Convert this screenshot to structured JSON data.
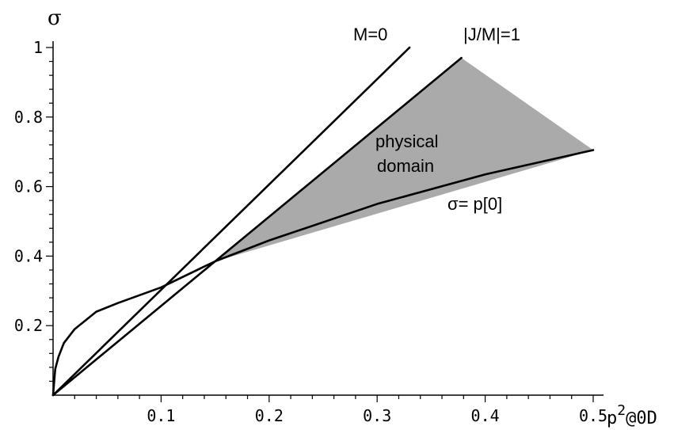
{
  "chart_data": {
    "type": "line",
    "x_axis": {
      "label_base": "p",
      "label_sup": "2",
      "label_tail": "@0D",
      "range": [
        0,
        0.5
      ],
      "tick_labels": [
        "0.1",
        "0.2",
        "0.3",
        "0.4",
        "0.5"
      ],
      "tick_values": [
        0.1,
        0.2,
        0.3,
        0.4,
        0.5
      ]
    },
    "y_axis": {
      "label": "σ",
      "range": [
        0,
        1
      ],
      "tick_labels": [
        "0.2",
        "0.4",
        "0.6",
        "0.8",
        "1"
      ],
      "tick_values": [
        0.2,
        0.4,
        0.6,
        0.8,
        1.0
      ]
    },
    "series": [
      {
        "name": "M=0",
        "x": [
          0,
          0.33
        ],
        "y": [
          0,
          1.0
        ]
      },
      {
        "name": "|J/M|=1",
        "x": [
          0,
          0.378
        ],
        "y": [
          0,
          0.97
        ]
      },
      {
        "name": "σ= p[0]",
        "x": [
          0,
          0.002,
          0.005,
          0.01,
          0.02,
          0.04,
          0.06,
          0.1,
          0.15,
          0.2,
          0.3,
          0.4,
          0.5
        ],
        "y": [
          0,
          0.075,
          0.11,
          0.15,
          0.19,
          0.24,
          0.265,
          0.31,
          0.385,
          0.445,
          0.55,
          0.635,
          0.705
        ]
      }
    ],
    "shaded_region": {
      "label_line1": "physical",
      "label_line2": "domain",
      "color": "#aaaaaa",
      "vertices": [
        [
          0.15,
          0.385
        ],
        [
          0.378,
          0.97
        ],
        [
          0.5,
          0.705
        ]
      ]
    },
    "line_color": "#000000",
    "grid": false,
    "legend": "none"
  }
}
